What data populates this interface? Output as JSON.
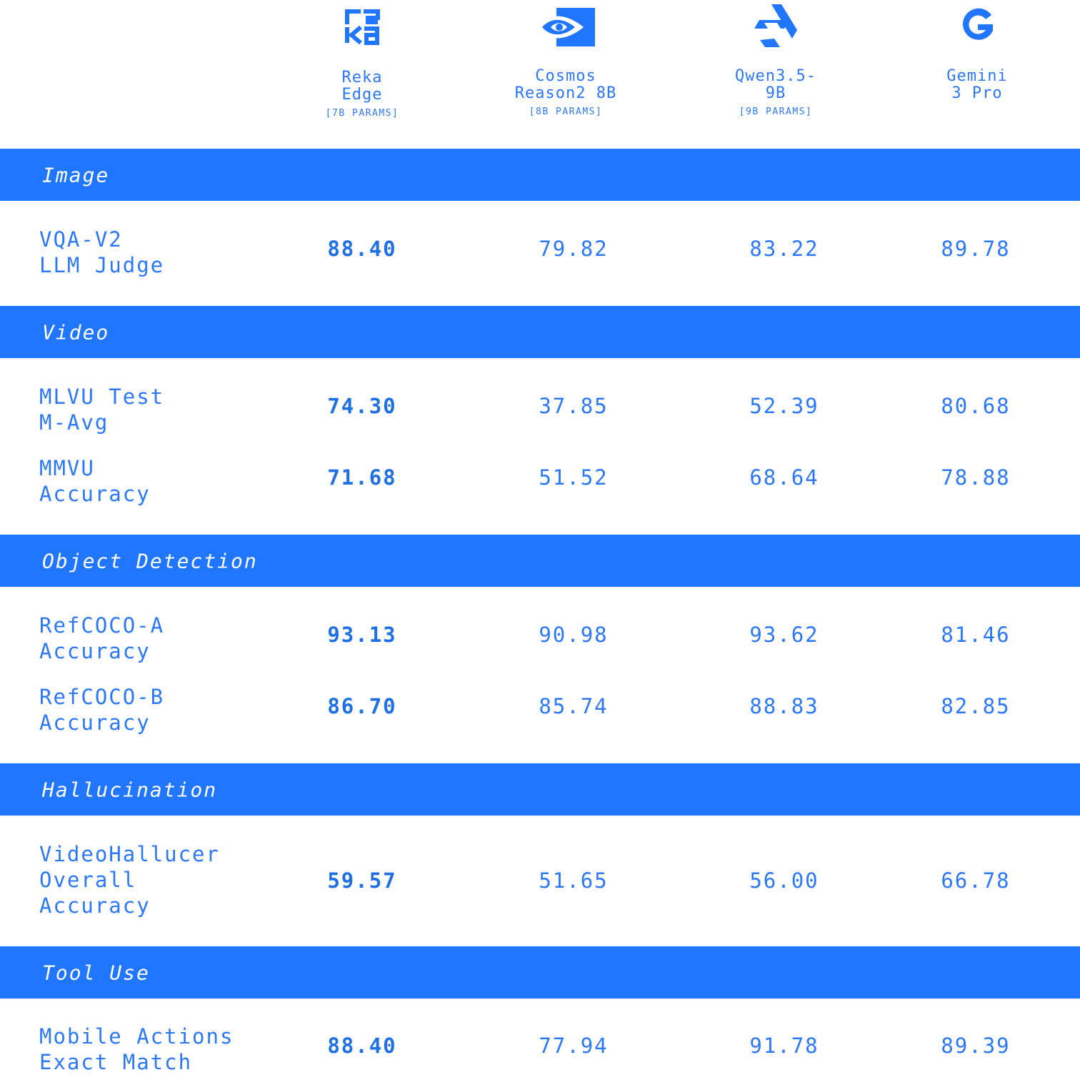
{
  "colors": {
    "accent": "#2176ff",
    "text": "#2c78fb",
    "band_text": "#ffffff"
  },
  "chart_data": {
    "type": "table",
    "columns": [
      {
        "name": "Reka\nEdge",
        "params": "[7B PARAMS]",
        "icon": "reka-logo-icon"
      },
      {
        "name": "Cosmos\nReason2 8B",
        "params": "[8B PARAMS]",
        "icon": "nvidia-logo-icon"
      },
      {
        "name": "Qwen3.5-\n9B",
        "params": "[9B PARAMS]",
        "icon": "qwen-logo-icon"
      },
      {
        "name": "Gemini\n3 Pro",
        "params": "",
        "icon": "google-logo-icon"
      }
    ],
    "categories": [
      {
        "name": "Image",
        "rows": [
          {
            "metric": "VQA-V2\nLLM Judge",
            "values": [
              "88.40",
              "79.82",
              "83.22",
              "89.78"
            ]
          }
        ]
      },
      {
        "name": "Video",
        "rows": [
          {
            "metric": "MLVU Test\nM-Avg",
            "values": [
              "74.30",
              "37.85",
              "52.39",
              "80.68"
            ]
          },
          {
            "metric": "MMVU\nAccuracy",
            "values": [
              "71.68",
              "51.52",
              "68.64",
              "78.88"
            ]
          }
        ]
      },
      {
        "name": "Object Detection",
        "rows": [
          {
            "metric": "RefCOCO-A\nAccuracy",
            "values": [
              "93.13",
              "90.98",
              "93.62",
              "81.46"
            ]
          },
          {
            "metric": "RefCOCO-B\nAccuracy",
            "values": [
              "86.70",
              "85.74",
              "88.83",
              "82.85"
            ]
          }
        ]
      },
      {
        "name": "Hallucination",
        "rows": [
          {
            "metric": "VideoHallucer\nOverall\nAccuracy",
            "values": [
              "59.57",
              "51.65",
              "56.00",
              "66.78"
            ]
          }
        ]
      },
      {
        "name": "Tool Use",
        "rows": [
          {
            "metric": "Mobile Actions\nExact Match",
            "values": [
              "88.40",
              "77.94",
              "91.78",
              "89.39"
            ]
          }
        ]
      }
    ]
  }
}
